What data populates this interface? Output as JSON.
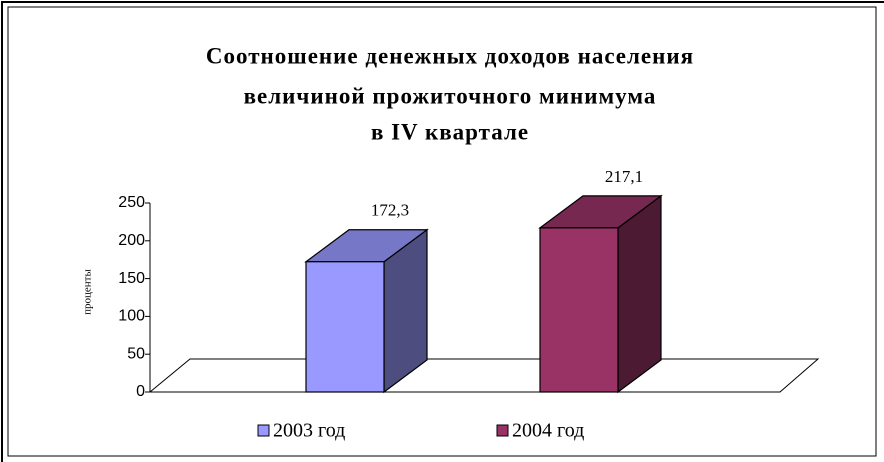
{
  "chart_data": {
    "type": "bar3d",
    "title": [
      "Соотношение денежных доходов населения",
      "величиной прожиточного минимума",
      "в IV квартале"
    ],
    "ylabel": "проценты",
    "series": [
      {
        "name": "2003 год",
        "color": "#9999ff",
        "values": [
          172.3
        ],
        "value_labels": [
          "172,3"
        ]
      },
      {
        "name": "2004 год",
        "color": "#993366",
        "values": [
          217.1
        ],
        "value_labels": [
          "217,1"
        ]
      }
    ],
    "ylim": [
      0,
      250
    ],
    "yticks": [
      0,
      50,
      100,
      150,
      200,
      250
    ],
    "legend": "bottom"
  }
}
